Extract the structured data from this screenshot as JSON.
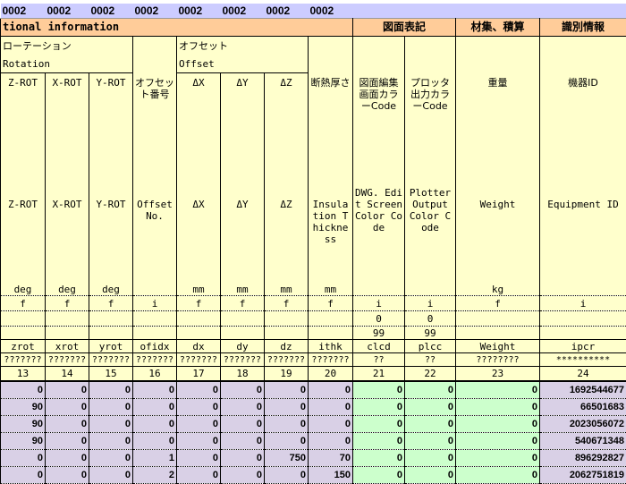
{
  "top_band": [
    "0002",
    "0002",
    "0002",
    "0002",
    "0002",
    "0002",
    "0002",
    "0002"
  ],
  "section": {
    "title": "tional information",
    "drawing": "図面表記",
    "material": "材集、積算",
    "ident": "識別情報"
  },
  "groups": {
    "rotation_jp": "ローテーション",
    "rotation_en": "Rotation",
    "offset_jp": "オフセット",
    "offset_en": "Offset"
  },
  "columns": [
    {
      "jp": "Z-ROT",
      "en": "Z-ROT",
      "unit": "deg",
      "type": "f",
      "min": "",
      "max": "",
      "name": "zrot",
      "fmt": "???????",
      "num": "13"
    },
    {
      "jp": "X-ROT",
      "en": "X-ROT",
      "unit": "deg",
      "type": "f",
      "min": "",
      "max": "",
      "name": "xrot",
      "fmt": "???????",
      "num": "14"
    },
    {
      "jp": "Y-ROT",
      "en": "Y-ROT",
      "unit": "deg",
      "type": "f",
      "min": "",
      "max": "",
      "name": "yrot",
      "fmt": "???????",
      "num": "15"
    },
    {
      "jp": "オフセット番号",
      "en": "Offset No.",
      "unit": "",
      "type": "i",
      "min": "",
      "max": "",
      "name": "ofidx",
      "fmt": "???????",
      "num": "16"
    },
    {
      "jp": "ΔX",
      "en": "ΔX",
      "unit": "mm",
      "type": "f",
      "min": "",
      "max": "",
      "name": "dx",
      "fmt": "???????",
      "num": "17"
    },
    {
      "jp": "ΔY",
      "en": "ΔY",
      "unit": "mm",
      "type": "f",
      "min": "",
      "max": "",
      "name": "dy",
      "fmt": "???????",
      "num": "18"
    },
    {
      "jp": "ΔZ",
      "en": "ΔZ",
      "unit": "mm",
      "type": "f",
      "min": "",
      "max": "",
      "name": "dz",
      "fmt": "???????",
      "num": "19"
    },
    {
      "jp": "断熱厚さ",
      "en": "Insulation Thickness",
      "unit": "mm",
      "type": "f",
      "min": "",
      "max": "",
      "name": "ithk",
      "fmt": "???????",
      "num": "20"
    },
    {
      "jp": "図面編集画面カラーCode",
      "en": "DWG. Edit Screen Color Code",
      "unit": "",
      "type": "i",
      "min": "0",
      "max": "99",
      "name": "clcd",
      "fmt": "??",
      "num": "21"
    },
    {
      "jp": "プロッタ出力カラーCode",
      "en": "Plotter Output Color Code",
      "unit": "",
      "type": "i",
      "min": "0",
      "max": "99",
      "name": "plcc",
      "fmt": "??",
      "num": "22"
    },
    {
      "jp": "重量",
      "en": "Weight",
      "unit": "kg",
      "type": "f",
      "min": "",
      "max": "",
      "name": "Weight",
      "fmt": "????????",
      "num": "23"
    },
    {
      "jp": "機器ID",
      "en": "Equipment ID",
      "unit": "",
      "type": "i",
      "min": "",
      "max": "",
      "name": "ipcr",
      "fmt": "**********",
      "num": "24"
    }
  ],
  "rows": [
    [
      "0",
      "0",
      "0",
      "0",
      "0",
      "0",
      "0",
      "0",
      "0",
      "0",
      "0",
      "1692544677"
    ],
    [
      "90",
      "0",
      "0",
      "0",
      "0",
      "0",
      "0",
      "0",
      "0",
      "0",
      "0",
      "66501683"
    ],
    [
      "90",
      "0",
      "0",
      "0",
      "0",
      "0",
      "0",
      "0",
      "0",
      "0",
      "0",
      "2023056072"
    ],
    [
      "90",
      "0",
      "0",
      "0",
      "0",
      "0",
      "0",
      "0",
      "0",
      "0",
      "0",
      "540671348"
    ],
    [
      "0",
      "0",
      "0",
      "1",
      "0",
      "0",
      "750",
      "70",
      "0",
      "0",
      "0",
      "896292827"
    ],
    [
      "0",
      "0",
      "0",
      "2",
      "0",
      "0",
      "0",
      "150",
      "0",
      "0",
      "0",
      "2062751819"
    ]
  ],
  "colors": {
    "band": "#ccccff",
    "section": "#ffcc99",
    "header": "#ffffcc",
    "data": "#d9d0e6",
    "data_green": "#ccffcc"
  }
}
